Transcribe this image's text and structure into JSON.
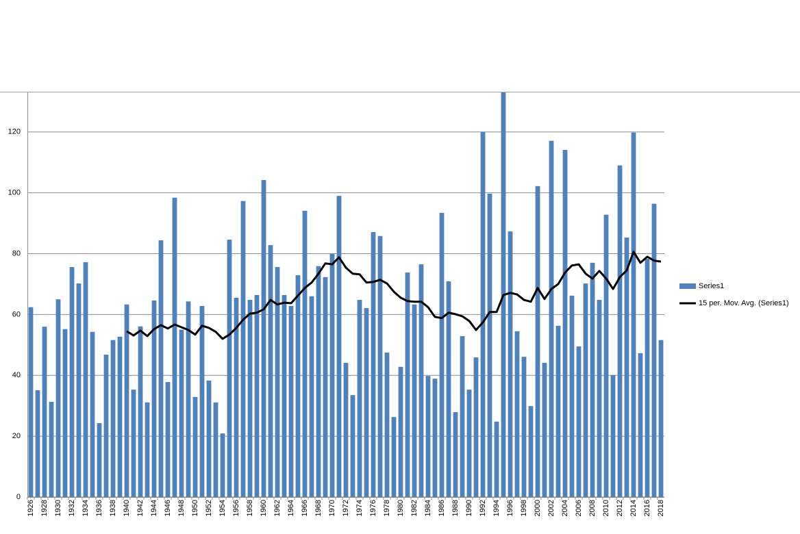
{
  "chart_data": {
    "type": "bar",
    "categories": [
      "1926",
      null,
      "1928",
      null,
      "1930",
      null,
      "1932",
      null,
      "1934",
      null,
      "1936",
      null,
      "1938",
      null,
      "1940",
      null,
      "1942",
      null,
      "1944",
      null,
      "1946",
      null,
      "1948",
      null,
      "1950",
      null,
      "1952",
      null,
      "1954",
      null,
      "1956",
      null,
      "1958",
      null,
      "1960",
      null,
      "1962",
      null,
      "1964",
      null,
      "1966",
      null,
      "1968",
      null,
      "1970",
      null,
      "1972",
      null,
      "1974",
      null,
      "1976",
      null,
      "1978",
      null,
      "1980",
      null,
      "1982",
      null,
      "1984",
      null,
      "1986",
      null,
      "1988",
      null,
      "1990",
      null,
      "1992",
      null,
      "1994",
      null,
      "1996",
      null,
      "1998",
      null,
      "2000",
      null,
      "2002",
      null,
      "2004",
      null,
      "2006",
      null,
      "2008",
      null,
      "2010",
      null,
      "2012",
      null,
      "2014",
      null,
      "2016",
      null,
      "2018"
    ],
    "series": [
      {
        "name": "Series1",
        "type": "bar",
        "color": "#4f81bd",
        "values": [
          62.4,
          35.1,
          56,
          31.3,
          65,
          55.2,
          75.6,
          70.2,
          77.2,
          54.3,
          24.3,
          46.8,
          51.6,
          52.7,
          63.3,
          35.3,
          56.1,
          31.1,
          64.6,
          84.4,
          37.8,
          98.4,
          55,
          64.3,
          32.9,
          62.8,
          38.3,
          31.1,
          20.9,
          84.6,
          65.5,
          97.3,
          64.8,
          66.4,
          104.2,
          82.8,
          75.6,
          66.4,
          62.8,
          72.9,
          94.1,
          66,
          75.9,
          72.3,
          79.9,
          99,
          44.1,
          33.5,
          64.8,
          62.1,
          87.1,
          85.8,
          47.5,
          26.3,
          42.8,
          73.8,
          63.3,
          76.5,
          39.8,
          38.9,
          93.4,
          70.9,
          27.9,
          52.9,
          35.3,
          45.9,
          120,
          99.7,
          24.8,
          133,
          87.3,
          54.5,
          46.1,
          29.9,
          102.2,
          44.1,
          117.1,
          56.3,
          114.1,
          66.2,
          49.5,
          70.2,
          77,
          64.8,
          92.8,
          40.1,
          109,
          85.3,
          119.8,
          47.3,
          78.3,
          96.4,
          51.6
        ]
      },
      {
        "name": "15 per. Mov. Avg. (Series1)",
        "type": "line",
        "color": "#000000",
        "values": [
          null,
          null,
          null,
          null,
          null,
          null,
          null,
          null,
          null,
          null,
          null,
          null,
          null,
          null,
          54.5,
          53.1,
          54.7,
          52.9,
          55.2,
          56.5,
          55.4,
          56.7,
          55.8,
          54.9,
          53.4,
          56.3,
          55.6,
          54.3,
          52,
          53.4,
          55.6,
          58.3,
          60.3,
          60.6,
          61.7,
          64.8,
          63.3,
          63.9,
          63.7,
          66.2,
          68.7,
          70.5,
          73.4,
          76.8,
          76.5,
          78.8,
          75.4,
          73.4,
          73.2,
          70.5,
          70.7,
          71.4,
          70.2,
          67.5,
          65.5,
          64.4,
          64.2,
          64.2,
          62.4,
          59.2,
          58.8,
          60.6,
          60.1,
          59.4,
          57.9,
          54.9,
          57.4,
          60.8,
          60.8,
          66.4,
          67.1,
          66.6,
          64.8,
          64.2,
          68.7,
          65.1,
          68.4,
          70,
          73.8,
          76.1,
          76.5,
          73.4,
          71.8,
          74.3,
          71.8,
          68.4,
          72.3,
          74.5,
          80.6,
          77,
          79,
          77.7,
          77.4
        ]
      }
    ],
    "ylim": [
      0,
      133
    ],
    "yticks": [
      0,
      20,
      40,
      60,
      80,
      100,
      120
    ],
    "grid": true,
    "legend": "right"
  }
}
